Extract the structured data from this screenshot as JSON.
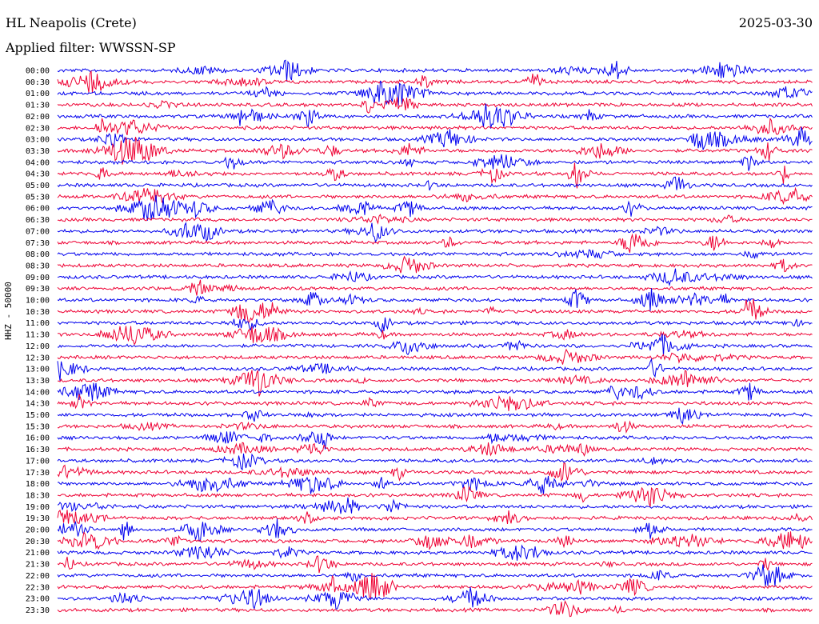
{
  "header": {
    "station": "HL Neapolis (Crete)",
    "date": "2025-03-30",
    "filter": "Applied filter: WWSSN-SP"
  },
  "y_axis_label": "HHZ - 50000",
  "colors": {
    "trace_a": "#0000ee",
    "trace_b": "#ee0033",
    "background": "#ffffff"
  },
  "chart_data": {
    "type": "line",
    "title": "HL Neapolis (Crete)",
    "subtitle": "Applied filter: WWSSN-SP",
    "ylabel": "HHZ - 50000",
    "xlabel": "",
    "categories": [
      "00:00",
      "00:30",
      "01:00",
      "01:30",
      "02:00",
      "02:30",
      "03:00",
      "03:30",
      "04:00",
      "04:30",
      "05:00",
      "05:30",
      "06:00",
      "06:30",
      "07:00",
      "07:30",
      "08:00",
      "08:30",
      "09:00",
      "09:30",
      "10:00",
      "10:30",
      "11:00",
      "11:30",
      "12:00",
      "12:30",
      "13:00",
      "13:30",
      "14:00",
      "14:30",
      "15:00",
      "15:30",
      "16:00",
      "16:30",
      "17:00",
      "17:30",
      "18:00",
      "18:30",
      "19:00",
      "19:30",
      "20:00",
      "20:30",
      "21:00",
      "21:30",
      "22:00",
      "22:30",
      "23:00",
      "23:30"
    ],
    "series": [
      {
        "color": "#0000ee"
      },
      {
        "color": "#ee0033"
      }
    ],
    "grid": false
  }
}
